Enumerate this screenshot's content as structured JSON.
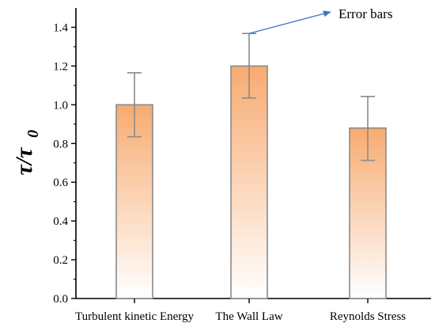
{
  "chart_data": {
    "type": "bar",
    "categories": [
      "Turbulent kinetic Energy",
      "The Wall Law",
      "Reynolds Stress"
    ],
    "values": [
      1.0,
      1.2,
      0.88
    ],
    "error_bars": [
      {
        "low": 0.835,
        "high": 1.165
      },
      {
        "low": 1.035,
        "high": 1.368
      },
      {
        "low": 0.713,
        "high": 1.043
      }
    ],
    "ylim": [
      0,
      1.5
    ],
    "yticks": [
      "0.0",
      "0.2",
      "0.4",
      "0.6",
      "0.8",
      "1.0",
      "1.2",
      "1.4"
    ],
    "ylabel": {
      "main": "τ/τ",
      "sub": "0"
    },
    "xlabel": "",
    "annotation": {
      "text": "Error bars",
      "points_to_category": 1
    },
    "bar_gradient": {
      "top": "#f7ab70",
      "bottom": "#ffffff"
    },
    "bar_stroke": "#8a8a8a",
    "arrow_color": "#3b78c4",
    "grid": false
  }
}
